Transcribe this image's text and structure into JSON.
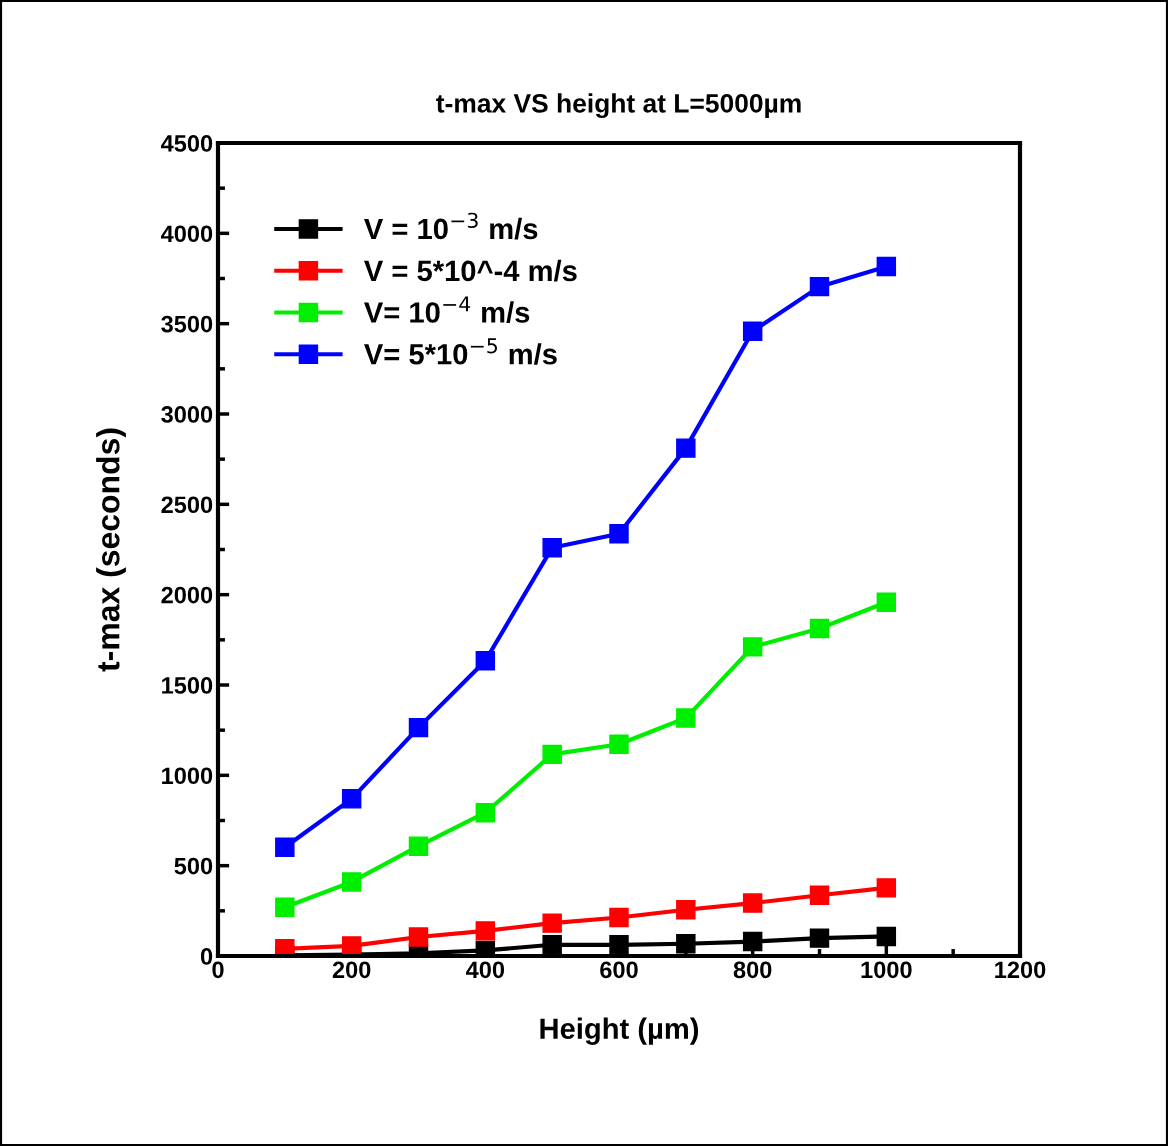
{
  "chart_data": {
    "type": "line",
    "title": "t-max VS height at L=5000µm",
    "xlabel": "Height (µm)",
    "ylabel": "t-max (seconds)",
    "x": [
      100,
      200,
      300,
      400,
      500,
      600,
      700,
      800,
      900,
      1000
    ],
    "series": [
      {
        "name": "V = 10$^{−3}$ m/s",
        "color": "#000000",
        "values": [
          3,
          8,
          15,
          31,
          62,
          62,
          68,
          80,
          99,
          108
        ]
      },
      {
        "name": "V = 5*10^-4 m/s",
        "color": "#ff0000",
        "values": [
          40,
          56,
          105,
          139,
          182,
          213,
          256,
          293,
          336,
          377
        ]
      },
      {
        "name": "V= 10$^{−4}$ m/s",
        "color": "#00ee00",
        "values": [
          270,
          410,
          608,
          793,
          1116,
          1172,
          1317,
          1711,
          1813,
          1958
        ]
      },
      {
        "name": "V= 5*10$^{−5}$ m/s",
        "color": "#0000ff",
        "values": [
          602,
          870,
          1264,
          1634,
          2260,
          2337,
          2811,
          3458,
          3705,
          3816
        ]
      }
    ],
    "xlim": [
      0,
      1200
    ],
    "xticks": [
      0,
      200,
      400,
      600,
      800,
      1000,
      1200
    ],
    "ylim": [
      0,
      4500
    ],
    "yticks": [
      0,
      500,
      1000,
      1500,
      2000,
      2500,
      3000,
      3500,
      4000,
      4500
    ],
    "marker": "square",
    "line_style": "solid",
    "grid": false,
    "legend": "top left"
  }
}
